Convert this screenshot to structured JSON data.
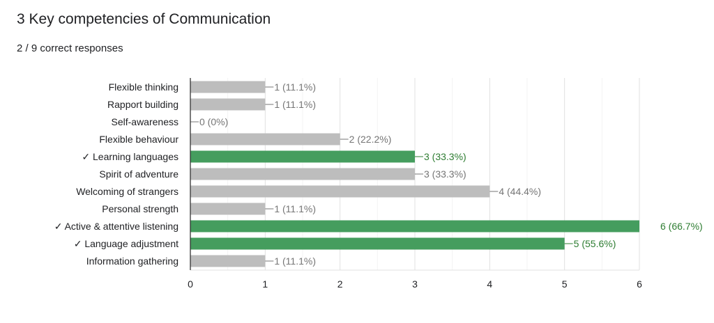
{
  "question": {
    "title": "3 Key competencies of Communication",
    "score": "2 / 9 correct responses"
  },
  "chart_data": {
    "type": "bar",
    "orientation": "horizontal",
    "categories": [
      "Flexible thinking",
      "Rapport building",
      "Self-awareness",
      "Flexible behaviour",
      "Learning languages",
      "Spirit of adventure",
      "Welcoming of strangers",
      "Personal strength",
      "Active & attentive listening",
      "Language adjustment",
      "Information gathering"
    ],
    "values": [
      1,
      1,
      0,
      2,
      3,
      3,
      4,
      1,
      6,
      5,
      1
    ],
    "labels": [
      "1 (11.1%)",
      "1 (11.1%)",
      "0 (0%)",
      "2 (22.2%)",
      "3 (33.3%)",
      "3 (33.3%)",
      "4 (44.4%)",
      "1 (11.1%)",
      "6 (66.7%)",
      "5 (55.6%)",
      "1 (11.1%)"
    ],
    "correct": [
      false,
      false,
      false,
      false,
      true,
      false,
      false,
      false,
      true,
      true,
      false
    ],
    "correct_mark": "✓",
    "xlim": [
      0,
      6
    ],
    "xticks": [
      "0",
      "1",
      "2",
      "3",
      "4",
      "5",
      "6"
    ],
    "grid": true,
    "colors": {
      "correct": "#459d5e",
      "incorrect": "#bdbdbd",
      "correct_label": "#2e7d32",
      "incorrect_label": "#757575"
    }
  }
}
